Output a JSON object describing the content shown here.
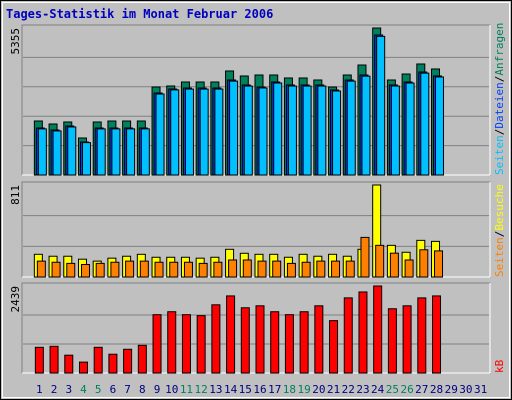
{
  "title": "Tages-Statistik im Monat Februar 2006",
  "legend_separator": "/",
  "chart_data": [
    {
      "type": "bar",
      "ylim": [
        0,
        5355
      ],
      "yticks": [
        5355
      ],
      "series": [
        {
          "name": "Anfragen",
          "color": "#00805c",
          "values": [
            1967,
            1858,
            1931,
            1348,
            1931,
            1967,
            1967,
            1967,
            3206,
            3242,
            3388,
            3388,
            3388,
            3789,
            3607,
            3643,
            3643,
            3534,
            3534,
            3461,
            3206,
            3643,
            4007,
            5355,
            3461,
            3679,
            4044,
            3862,
            null,
            null,
            null
          ]
        },
        {
          "name": "Dateien",
          "color": "#0040ff",
          "values": [
            1712,
            1639,
            1785,
            1202,
            1712,
            1712,
            1712,
            1712,
            2987,
            3133,
            3169,
            3169,
            3169,
            3461,
            3279,
            3206,
            3388,
            3279,
            3279,
            3279,
            3097,
            3461,
            3643,
            5100,
            3279,
            3388,
            3752,
            3607,
            null,
            null,
            null
          ]
        },
        {
          "name": "Seiten",
          "color": "#00c0ff",
          "values": [
            1680,
            1605,
            1750,
            1180,
            1680,
            1680,
            1680,
            1680,
            2950,
            3100,
            3130,
            3130,
            3130,
            3420,
            3240,
            3170,
            3350,
            3240,
            3240,
            3240,
            3060,
            3420,
            3600,
            5050,
            3240,
            3350,
            3710,
            3570,
            null,
            null,
            null
          ]
        }
      ]
    },
    {
      "type": "bar",
      "ylim": [
        0,
        811
      ],
      "yticks": [
        811
      ],
      "series": [
        {
          "name": "Besuche",
          "color": "#ffff00",
          "values": [
            200,
            183,
            183,
            157,
            140,
            166,
            183,
            200,
            174,
            174,
            174,
            166,
            174,
            244,
            209,
            200,
            200,
            174,
            200,
            183,
            200,
            183,
            244,
            811,
            279,
            218,
            323,
            314,
            null,
            null,
            null
          ]
        },
        {
          "name": "Seiten",
          "color": "#ff8000",
          "values": [
            140,
            130,
            120,
            110,
            120,
            130,
            140,
            140,
            130,
            130,
            130,
            120,
            130,
            150,
            150,
            140,
            140,
            120,
            130,
            140,
            140,
            140,
            349,
            279,
            210,
            150,
            240,
            230,
            null,
            null,
            null
          ]
        }
      ]
    },
    {
      "type": "bar",
      "ylim": [
        0,
        2439
      ],
      "yticks": [
        2439
      ],
      "categories": [
        "1",
        "2",
        "3",
        "4",
        "5",
        "6",
        "7",
        "8",
        "9",
        "10",
        "11",
        "12",
        "13",
        "14",
        "15",
        "16",
        "17",
        "18",
        "19",
        "20",
        "21",
        "22",
        "23",
        "24",
        "25",
        "26",
        "27",
        "28",
        "29",
        "30",
        "31"
      ],
      "category_colors": [
        "#000080",
        "#000080",
        "#000080",
        "#00805c",
        "#00805c",
        "#000080",
        "#000080",
        "#000080",
        "#000080",
        "#000080",
        "#00805c",
        "#00805c",
        "#000080",
        "#000080",
        "#000080",
        "#000080",
        "#000080",
        "#00805c",
        "#00805c",
        "#000080",
        "#000080",
        "#000080",
        "#000080",
        "#000080",
        "#00805c",
        "#00805c",
        "#000080",
        "#000080",
        "#000080",
        "#000080",
        "#000080"
      ],
      "series": [
        {
          "name": "kB",
          "color": "#ff0000",
          "values": [
            720,
            748,
            499,
            305,
            720,
            526,
            665,
            776,
            1635,
            1718,
            1635,
            1607,
            1912,
            2161,
            1829,
            1884,
            1718,
            1635,
            1718,
            1884,
            1468,
            2106,
            2272,
            2439,
            1801,
            1884,
            2106,
            2161,
            null,
            null,
            null
          ]
        }
      ]
    }
  ]
}
